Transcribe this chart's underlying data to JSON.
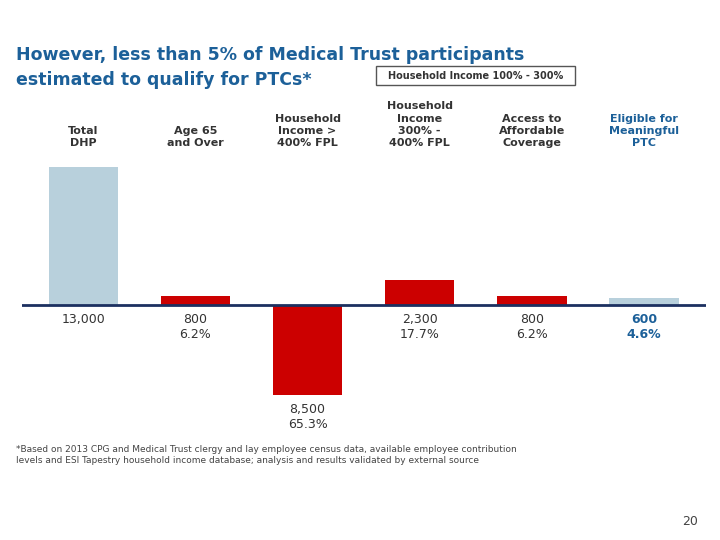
{
  "title_line1": "However, less than 5% of Medical Trust participants",
  "title_line2": "estimated to qualify for PTCs*",
  "title_color": "#1C6099",
  "title_bg_color": "#1C6099",
  "bar_values": [
    13000,
    800,
    8500,
    2300,
    800,
    600
  ],
  "bar_colors": [
    "#B8D0DC",
    "#CC0000",
    "#CC0000",
    "#CC0000",
    "#CC0000",
    "#B8D0DC"
  ],
  "label_colors": [
    "#333333",
    "#333333",
    "#333333",
    "#333333",
    "#333333",
    "#1C6099"
  ],
  "bracket_label": "Household Income 100% - 300%",
  "footnote": "*Based on 2013 CPG and Medical Trust clergy and lay employee census data, available employee contribution\nlevels and ESI Tapestry household income database; analysis and results validated by external source",
  "page_number": "20",
  "background_color": "#FFFFFF",
  "header_bar_color": "#1C6099",
  "baseline_color": "#1C3060",
  "col_headers": [
    {
      "text": "Total\nDHP",
      "underline": true,
      "color": "#333333"
    },
    {
      "text": "Age 65\nand Over",
      "underline": true,
      "color": "#333333"
    },
    {
      "text": "Household\nIncome >\n400% FPL",
      "underline": true,
      "color": "#333333"
    },
    {
      "text": "Household\nIncome\n300% -\n400% FPL",
      "underline": true,
      "color": "#333333"
    },
    {
      "text": "Access to\nAffordable\nCoverage",
      "underline": true,
      "color": "#333333"
    },
    {
      "text": "Eligible for\nMeaningful\nPTC",
      "underline": false,
      "color": "#1C6099"
    }
  ],
  "val_labels": [
    {
      "line1": "13,000",
      "line2": "",
      "color": "#333333"
    },
    {
      "line1": "800",
      "line2": "6.2%",
      "color": "#333333"
    },
    {
      "line1": "8,500",
      "line2": "65.3%",
      "color": "#333333"
    },
    {
      "line1": "2,300",
      "line2": "17.7%",
      "color": "#333333"
    },
    {
      "line1": "800",
      "line2": "6.2%",
      "color": "#333333"
    },
    {
      "line1": "600",
      "line2": "4.6%",
      "color": "#1C6099"
    }
  ]
}
